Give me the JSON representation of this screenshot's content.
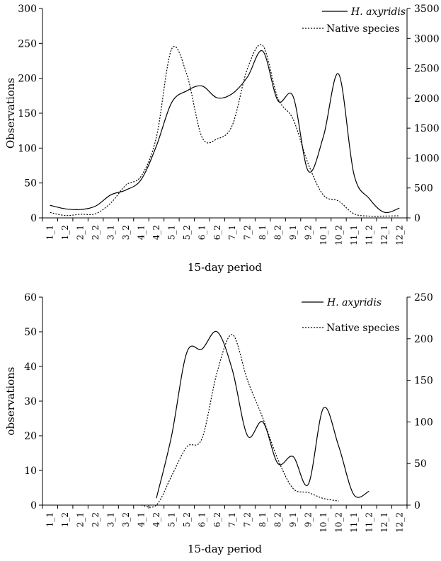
{
  "chart_data": [
    {
      "type": "line",
      "xlabel": "15-day period",
      "ylabel": "Observations",
      "ylim": [
        0,
        300
      ],
      "yticks": [
        0,
        50,
        100,
        150,
        200,
        250,
        300
      ],
      "y2lim": [
        0,
        3500
      ],
      "y2ticks": [
        0,
        500,
        1000,
        1500,
        2000,
        2500,
        3000,
        3500
      ],
      "categories": [
        "1_1",
        "1_2",
        "2_1",
        "2_2",
        "3_1",
        "3_2",
        "4_1",
        "4_2",
        "5_1",
        "5_2",
        "6_1",
        "6_2",
        "7_1",
        "7_2",
        "8_1",
        "8_2",
        "9_1",
        "9_2",
        "10_1",
        "10_2",
        "11_1",
        "11_2",
        "12_1",
        "12_2"
      ],
      "legend_position": "top-right",
      "series": [
        {
          "name": "H. axyridis",
          "axis": "left",
          "style": "solid",
          "values": [
            18,
            13,
            12,
            17,
            33,
            40,
            55,
            103,
            165,
            182,
            189,
            172,
            178,
            202,
            239,
            168,
            174,
            67,
            117,
            206,
            63,
            28,
            8,
            14
          ]
        },
        {
          "name": "Native species",
          "axis": "right",
          "style": "dotted",
          "values": [
            90,
            40,
            60,
            70,
            250,
            550,
            700,
            1350,
            2820,
            2400,
            1350,
            1320,
            1550,
            2500,
            2880,
            2000,
            1650,
            900,
            380,
            280,
            70,
            30,
            30,
            35
          ]
        }
      ]
    },
    {
      "type": "line",
      "xlabel": "15-day period",
      "ylabel": "observations",
      "ylim": [
        0,
        60
      ],
      "yticks": [
        0,
        10,
        20,
        30,
        40,
        50,
        60
      ],
      "y2lim": [
        0,
        250
      ],
      "y2ticks": [
        0,
        50,
        100,
        150,
        200,
        250
      ],
      "categories": [
        "1_1",
        "1_2",
        "2_1",
        "2_2",
        "3_1",
        "3_2",
        "4_1",
        "4_2",
        "5_1",
        "5_2",
        "6_1",
        "6_2",
        "7_1",
        "7_2",
        "8_1",
        "8_2",
        "9_1",
        "9_2",
        "10_1",
        "10_2",
        "11_1",
        "11_2",
        "12_1",
        "12_2"
      ],
      "legend_position": "top-right",
      "series": [
        {
          "name": "H. axyridis",
          "axis": "left",
          "style": "solid",
          "values": [
            null,
            null,
            null,
            null,
            null,
            null,
            null,
            2,
            20,
            44,
            45,
            50,
            39,
            20,
            24,
            12,
            14,
            6,
            28,
            17,
            3,
            4,
            null,
            null
          ]
        },
        {
          "name": "Native species",
          "axis": "right",
          "style": "dotted",
          "values": [
            null,
            null,
            null,
            null,
            null,
            null,
            0,
            0,
            35,
            70,
            80,
            160,
            205,
            150,
            105,
            55,
            20,
            15,
            8,
            5,
            null,
            null,
            null,
            null
          ]
        }
      ]
    }
  ]
}
